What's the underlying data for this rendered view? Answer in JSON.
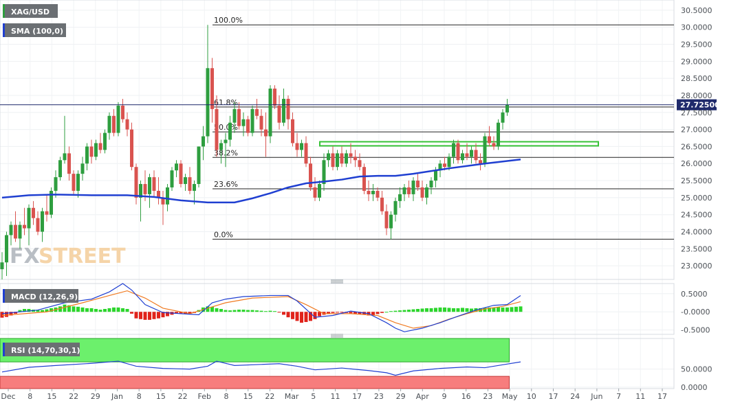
{
  "chart_data": {
    "type": "candlestick",
    "symbol": "XAG/USD",
    "indicators": {
      "sma_label": "SMA (100,0)",
      "macd_label": "MACD (12,26,9)",
      "rsi_label": "RSI (14,70,30,1)"
    },
    "price_axis": {
      "ticks": [
        "30.5000",
        "30.0000",
        "29.5000",
        "29.0000",
        "28.5000",
        "28.0000",
        "27.5000",
        "27.0000",
        "26.5000",
        "26.0000",
        "25.5000",
        "25.0000",
        "24.5000",
        "24.0000",
        "23.5000",
        "23.0000"
      ],
      "ylim": [
        22.6,
        30.8
      ],
      "last_price_label": "27.72500",
      "last_price": 27.725
    },
    "macd_axis": {
      "ticks": [
        "0.5000",
        "-0.0000",
        "-0.5000"
      ],
      "ylim": [
        -0.62,
        0.78
      ]
    },
    "rsi_axis": {
      "ticks": [
        "50.0000",
        "0.0000"
      ],
      "ylim": [
        -4,
        135
      ],
      "overbought": 70,
      "oversold": 30
    },
    "x_axis": {
      "labels": [
        "Dec",
        "8",
        "15",
        "22",
        "29",
        "Jan",
        "8",
        "15",
        "22",
        "Feb",
        "8",
        "15",
        "22",
        "Mar",
        "5",
        "11",
        "17",
        "23",
        "29",
        "Apr",
        "9",
        "16",
        "23",
        "May",
        "10",
        "17",
        "24",
        "Jun",
        "7",
        "11",
        "17"
      ]
    },
    "fibonacci": {
      "levels": [
        {
          "label": "100.0%",
          "value": 30.07
        },
        {
          "label": "61.8%",
          "value": 27.66
        },
        {
          "label": "50.0%",
          "value": 26.93
        },
        {
          "label": "38.2%",
          "value": 26.18
        },
        {
          "label": "23.6%",
          "value": 25.26
        },
        {
          "label": "0.0%",
          "value": 23.78
        }
      ]
    },
    "resistance_zone": {
      "low": 26.52,
      "high": 26.64
    },
    "candles": [
      {
        "o": 22.9,
        "h": 23.4,
        "l": 22.6,
        "c": 23.1
      },
      {
        "o": 23.1,
        "h": 24.0,
        "l": 22.7,
        "c": 23.9
      },
      {
        "o": 23.9,
        "h": 24.3,
        "l": 23.6,
        "c": 24.2
      },
      {
        "o": 24.2,
        "h": 24.6,
        "l": 23.7,
        "c": 23.8
      },
      {
        "o": 23.8,
        "h": 24.3,
        "l": 23.5,
        "c": 24.2
      },
      {
        "o": 24.2,
        "h": 24.7,
        "l": 23.9,
        "c": 24.1
      },
      {
        "o": 24.1,
        "h": 24.8,
        "l": 23.6,
        "c": 24.7
      },
      {
        "o": 24.7,
        "h": 24.9,
        "l": 24.2,
        "c": 24.4
      },
      {
        "o": 24.4,
        "h": 24.6,
        "l": 23.9,
        "c": 24.0
      },
      {
        "o": 24.0,
        "h": 24.7,
        "l": 23.7,
        "c": 24.6
      },
      {
        "o": 24.6,
        "h": 25.1,
        "l": 24.3,
        "c": 24.5
      },
      {
        "o": 24.5,
        "h": 25.3,
        "l": 24.4,
        "c": 25.2
      },
      {
        "o": 25.2,
        "h": 25.8,
        "l": 25.0,
        "c": 25.6
      },
      {
        "o": 25.6,
        "h": 26.2,
        "l": 25.5,
        "c": 26.1
      },
      {
        "o": 26.1,
        "h": 27.4,
        "l": 26.0,
        "c": 26.3
      },
      {
        "o": 26.3,
        "h": 26.5,
        "l": 25.5,
        "c": 25.7
      },
      {
        "o": 25.7,
        "h": 25.8,
        "l": 25.1,
        "c": 25.2
      },
      {
        "o": 25.2,
        "h": 25.8,
        "l": 25.0,
        "c": 25.7
      },
      {
        "o": 25.7,
        "h": 26.2,
        "l": 25.5,
        "c": 26.0
      },
      {
        "o": 26.0,
        "h": 26.6,
        "l": 25.8,
        "c": 26.5
      },
      {
        "o": 26.5,
        "h": 26.7,
        "l": 26.0,
        "c": 26.2
      },
      {
        "o": 26.2,
        "h": 26.7,
        "l": 26.1,
        "c": 26.6
      },
      {
        "o": 26.6,
        "h": 26.9,
        "l": 26.3,
        "c": 26.4
      },
      {
        "o": 26.4,
        "h": 27.0,
        "l": 26.3,
        "c": 26.9
      },
      {
        "o": 26.9,
        "h": 27.5,
        "l": 26.7,
        "c": 27.4
      },
      {
        "o": 27.4,
        "h": 27.6,
        "l": 26.8,
        "c": 26.9
      },
      {
        "o": 26.9,
        "h": 27.8,
        "l": 26.8,
        "c": 27.7
      },
      {
        "o": 27.7,
        "h": 27.9,
        "l": 27.2,
        "c": 27.3
      },
      {
        "o": 27.3,
        "h": 27.5,
        "l": 26.8,
        "c": 27.0
      },
      {
        "o": 27.0,
        "h": 27.2,
        "l": 25.8,
        "c": 25.9
      },
      {
        "o": 25.9,
        "h": 26.0,
        "l": 24.8,
        "c": 25.0
      },
      {
        "o": 25.0,
        "h": 25.5,
        "l": 24.3,
        "c": 25.4
      },
      {
        "o": 25.4,
        "h": 25.8,
        "l": 24.9,
        "c": 25.1
      },
      {
        "o": 25.1,
        "h": 25.7,
        "l": 24.7,
        "c": 25.6
      },
      {
        "o": 25.6,
        "h": 25.8,
        "l": 25.0,
        "c": 25.2
      },
      {
        "o": 25.2,
        "h": 25.6,
        "l": 24.8,
        "c": 25.0
      },
      {
        "o": 25.0,
        "h": 25.2,
        "l": 24.2,
        "c": 24.8
      },
      {
        "o": 24.8,
        "h": 25.4,
        "l": 24.6,
        "c": 25.3
      },
      {
        "o": 25.3,
        "h": 25.9,
        "l": 25.2,
        "c": 25.8
      },
      {
        "o": 25.8,
        "h": 26.1,
        "l": 25.6,
        "c": 26.0
      },
      {
        "o": 26.0,
        "h": 26.1,
        "l": 25.3,
        "c": 25.4
      },
      {
        "o": 25.4,
        "h": 25.7,
        "l": 25.2,
        "c": 25.6
      },
      {
        "o": 25.6,
        "h": 25.9,
        "l": 25.1,
        "c": 25.2
      },
      {
        "o": 25.2,
        "h": 25.5,
        "l": 24.8,
        "c": 25.4
      },
      {
        "o": 25.4,
        "h": 26.5,
        "l": 25.3,
        "c": 26.5
      },
      {
        "o": 26.5,
        "h": 27.1,
        "l": 26.1,
        "c": 26.8
      },
      {
        "o": 26.8,
        "h": 30.07,
        "l": 26.6,
        "c": 28.8
      },
      {
        "o": 28.8,
        "h": 29.1,
        "l": 27.2,
        "c": 27.6
      },
      {
        "o": 27.6,
        "h": 28.0,
        "l": 26.2,
        "c": 26.4
      },
      {
        "o": 26.4,
        "h": 26.7,
        "l": 26.0,
        "c": 26.6
      },
      {
        "o": 26.6,
        "h": 26.9,
        "l": 25.9,
        "c": 26.7
      },
      {
        "o": 26.7,
        "h": 27.4,
        "l": 26.5,
        "c": 27.2
      },
      {
        "o": 27.2,
        "h": 27.8,
        "l": 26.9,
        "c": 27.6
      },
      {
        "o": 27.6,
        "h": 27.8,
        "l": 27.0,
        "c": 27.1
      },
      {
        "o": 27.1,
        "h": 27.5,
        "l": 26.8,
        "c": 27.3
      },
      {
        "o": 27.3,
        "h": 27.4,
        "l": 26.8,
        "c": 26.9
      },
      {
        "o": 26.9,
        "h": 27.7,
        "l": 26.8,
        "c": 27.6
      },
      {
        "o": 27.6,
        "h": 27.9,
        "l": 27.3,
        "c": 27.4
      },
      {
        "o": 27.4,
        "h": 27.6,
        "l": 26.8,
        "c": 27.0
      },
      {
        "o": 27.0,
        "h": 27.5,
        "l": 26.2,
        "c": 26.8
      },
      {
        "o": 26.8,
        "h": 28.3,
        "l": 26.6,
        "c": 28.2
      },
      {
        "o": 28.2,
        "h": 28.3,
        "l": 27.6,
        "c": 27.7
      },
      {
        "o": 27.7,
        "h": 28.0,
        "l": 27.0,
        "c": 27.2
      },
      {
        "o": 27.2,
        "h": 28.2,
        "l": 27.1,
        "c": 27.9
      },
      {
        "o": 27.9,
        "h": 28.0,
        "l": 27.0,
        "c": 27.3
      },
      {
        "o": 27.3,
        "h": 27.5,
        "l": 26.5,
        "c": 26.6
      },
      {
        "o": 26.6,
        "h": 26.9,
        "l": 26.2,
        "c": 26.4
      },
      {
        "o": 26.4,
        "h": 26.7,
        "l": 26.2,
        "c": 26.6
      },
      {
        "o": 26.6,
        "h": 26.8,
        "l": 25.9,
        "c": 26.0
      },
      {
        "o": 26.0,
        "h": 26.2,
        "l": 25.2,
        "c": 25.3
      },
      {
        "o": 25.3,
        "h": 25.6,
        "l": 24.9,
        "c": 25.0
      },
      {
        "o": 25.0,
        "h": 25.5,
        "l": 24.9,
        "c": 25.4
      },
      {
        "o": 25.4,
        "h": 26.3,
        "l": 25.2,
        "c": 26.1
      },
      {
        "o": 26.1,
        "h": 26.4,
        "l": 25.9,
        "c": 26.3
      },
      {
        "o": 26.3,
        "h": 26.5,
        "l": 25.8,
        "c": 25.9
      },
      {
        "o": 25.9,
        "h": 26.4,
        "l": 25.8,
        "c": 26.3
      },
      {
        "o": 26.3,
        "h": 26.5,
        "l": 25.9,
        "c": 26.0
      },
      {
        "o": 26.0,
        "h": 26.4,
        "l": 25.9,
        "c": 26.3
      },
      {
        "o": 26.3,
        "h": 26.6,
        "l": 26.0,
        "c": 26.2
      },
      {
        "o": 26.2,
        "h": 26.4,
        "l": 25.9,
        "c": 26.1
      },
      {
        "o": 26.1,
        "h": 26.3,
        "l": 25.8,
        "c": 25.9
      },
      {
        "o": 25.9,
        "h": 26.0,
        "l": 25.1,
        "c": 25.2
      },
      {
        "o": 25.2,
        "h": 25.5,
        "l": 24.9,
        "c": 25.1
      },
      {
        "o": 25.1,
        "h": 25.4,
        "l": 24.9,
        "c": 25.2
      },
      {
        "o": 25.2,
        "h": 25.3,
        "l": 24.9,
        "c": 25.0
      },
      {
        "o": 25.0,
        "h": 25.2,
        "l": 24.5,
        "c": 24.6
      },
      {
        "o": 24.6,
        "h": 24.8,
        "l": 23.9,
        "c": 24.1
      },
      {
        "o": 24.1,
        "h": 24.6,
        "l": 23.78,
        "c": 24.5
      },
      {
        "o": 24.5,
        "h": 25.0,
        "l": 24.3,
        "c": 24.9
      },
      {
        "o": 24.9,
        "h": 25.3,
        "l": 24.7,
        "c": 25.1
      },
      {
        "o": 25.1,
        "h": 25.4,
        "l": 24.9,
        "c": 25.3
      },
      {
        "o": 25.3,
        "h": 25.5,
        "l": 25.0,
        "c": 25.1
      },
      {
        "o": 25.1,
        "h": 25.6,
        "l": 24.9,
        "c": 25.5
      },
      {
        "o": 25.5,
        "h": 25.7,
        "l": 25.2,
        "c": 25.3
      },
      {
        "o": 25.3,
        "h": 25.5,
        "l": 24.9,
        "c": 25.0
      },
      {
        "o": 25.0,
        "h": 25.4,
        "l": 24.8,
        "c": 25.3
      },
      {
        "o": 25.3,
        "h": 25.6,
        "l": 25.1,
        "c": 25.5
      },
      {
        "o": 25.5,
        "h": 25.9,
        "l": 25.3,
        "c": 25.8
      },
      {
        "o": 25.8,
        "h": 26.1,
        "l": 25.6,
        "c": 26.0
      },
      {
        "o": 26.0,
        "h": 26.2,
        "l": 25.8,
        "c": 25.9
      },
      {
        "o": 25.9,
        "h": 26.3,
        "l": 25.8,
        "c": 26.2
      },
      {
        "o": 26.2,
        "h": 26.7,
        "l": 26.0,
        "c": 26.6
      },
      {
        "o": 26.6,
        "h": 26.7,
        "l": 26.0,
        "c": 26.1
      },
      {
        "o": 26.1,
        "h": 26.4,
        "l": 26.0,
        "c": 26.3
      },
      {
        "o": 26.3,
        "h": 26.6,
        "l": 26.1,
        "c": 26.2
      },
      {
        "o": 26.2,
        "h": 26.5,
        "l": 26.0,
        "c": 26.4
      },
      {
        "o": 26.4,
        "h": 26.6,
        "l": 26.0,
        "c": 26.1
      },
      {
        "o": 26.1,
        "h": 26.3,
        "l": 25.8,
        "c": 26.0
      },
      {
        "o": 26.0,
        "h": 26.9,
        "l": 25.9,
        "c": 26.8
      },
      {
        "o": 26.8,
        "h": 27.1,
        "l": 26.5,
        "c": 26.6
      },
      {
        "o": 26.6,
        "h": 26.8,
        "l": 26.4,
        "c": 26.5
      },
      {
        "o": 26.5,
        "h": 27.3,
        "l": 26.4,
        "c": 27.2
      },
      {
        "o": 27.2,
        "h": 27.6,
        "l": 27.0,
        "c": 27.5
      },
      {
        "o": 27.5,
        "h": 27.9,
        "l": 27.4,
        "c": 27.72
      }
    ],
    "sma100": [
      {
        "i": 0,
        "v": 25.0
      },
      {
        "i": 6,
        "v": 25.07
      },
      {
        "i": 12,
        "v": 25.09
      },
      {
        "i": 20,
        "v": 25.07
      },
      {
        "i": 28,
        "v": 25.07
      },
      {
        "i": 34,
        "v": 25.02
      },
      {
        "i": 40,
        "v": 24.92
      },
      {
        "i": 46,
        "v": 24.86
      },
      {
        "i": 52,
        "v": 24.86
      },
      {
        "i": 56,
        "v": 24.98
      },
      {
        "i": 60,
        "v": 25.13
      },
      {
        "i": 64,
        "v": 25.3
      },
      {
        "i": 68,
        "v": 25.42
      },
      {
        "i": 72,
        "v": 25.47
      },
      {
        "i": 76,
        "v": 25.53
      },
      {
        "i": 80,
        "v": 25.62
      },
      {
        "i": 84,
        "v": 25.64
      },
      {
        "i": 88,
        "v": 25.64
      },
      {
        "i": 92,
        "v": 25.7
      },
      {
        "i": 96,
        "v": 25.78
      },
      {
        "i": 100,
        "v": 25.86
      },
      {
        "i": 104,
        "v": 25.93
      },
      {
        "i": 108,
        "v": 26.0
      },
      {
        "i": 112,
        "v": 26.06
      },
      {
        "i": 116,
        "v": 26.12
      }
    ],
    "macd": [
      {
        "i": 0,
        "v": -0.05
      },
      {
        "i": 8,
        "v": 0.05
      },
      {
        "i": 14,
        "v": 0.25
      },
      {
        "i": 20,
        "v": 0.35
      },
      {
        "i": 24,
        "v": 0.55
      },
      {
        "i": 27,
        "v": 0.78
      },
      {
        "i": 29,
        "v": 0.6
      },
      {
        "i": 32,
        "v": 0.2
      },
      {
        "i": 36,
        "v": -0.02
      },
      {
        "i": 40,
        "v": -0.05
      },
      {
        "i": 44,
        "v": -0.08
      },
      {
        "i": 47,
        "v": 0.25
      },
      {
        "i": 50,
        "v": 0.35
      },
      {
        "i": 54,
        "v": 0.42
      },
      {
        "i": 60,
        "v": 0.45
      },
      {
        "i": 64,
        "v": 0.45
      },
      {
        "i": 66,
        "v": 0.3
      },
      {
        "i": 70,
        "v": -0.15
      },
      {
        "i": 74,
        "v": -0.1
      },
      {
        "i": 78,
        "v": 0.02
      },
      {
        "i": 82,
        "v": -0.05
      },
      {
        "i": 86,
        "v": -0.3
      },
      {
        "i": 88,
        "v": -0.45
      },
      {
        "i": 90,
        "v": -0.55
      },
      {
        "i": 94,
        "v": -0.45
      },
      {
        "i": 98,
        "v": -0.3
      },
      {
        "i": 102,
        "v": -0.12
      },
      {
        "i": 106,
        "v": 0.05
      },
      {
        "i": 110,
        "v": 0.18
      },
      {
        "i": 113,
        "v": 0.2
      },
      {
        "i": 116,
        "v": 0.45
      }
    ],
    "macd_signal": [
      {
        "i": 0,
        "v": -0.1
      },
      {
        "i": 10,
        "v": 0.0
      },
      {
        "i": 18,
        "v": 0.25
      },
      {
        "i": 24,
        "v": 0.45
      },
      {
        "i": 28,
        "v": 0.58
      },
      {
        "i": 32,
        "v": 0.38
      },
      {
        "i": 36,
        "v": 0.1
      },
      {
        "i": 42,
        "v": -0.05
      },
      {
        "i": 46,
        "v": 0.1
      },
      {
        "i": 50,
        "v": 0.25
      },
      {
        "i": 56,
        "v": 0.38
      },
      {
        "i": 64,
        "v": 0.42
      },
      {
        "i": 68,
        "v": 0.2
      },
      {
        "i": 72,
        "v": -0.05
      },
      {
        "i": 78,
        "v": -0.05
      },
      {
        "i": 84,
        "v": -0.1
      },
      {
        "i": 88,
        "v": -0.3
      },
      {
        "i": 92,
        "v": -0.45
      },
      {
        "i": 96,
        "v": -0.38
      },
      {
        "i": 100,
        "v": -0.2
      },
      {
        "i": 104,
        "v": -0.05
      },
      {
        "i": 108,
        "v": 0.08
      },
      {
        "i": 112,
        "v": 0.15
      },
      {
        "i": 116,
        "v": 0.28
      }
    ],
    "macd_hist": [
      -0.16,
      -0.14,
      -0.1,
      -0.05,
      0.05,
      0.08,
      0.08,
      0.06,
      0.05,
      0.05,
      0.07,
      0.1,
      0.12,
      0.15,
      0.2,
      0.18,
      0.15,
      0.14,
      0.12,
      0.1,
      0.1,
      0.08,
      0.06,
      0.08,
      0.1,
      0.12,
      0.12,
      0.1,
      0.08,
      -0.05,
      -0.18,
      -0.2,
      -0.22,
      -0.22,
      -0.2,
      -0.18,
      -0.15,
      -0.12,
      -0.08,
      -0.05,
      -0.04,
      -0.06,
      -0.05,
      -0.03,
      0.05,
      0.12,
      0.15,
      0.14,
      0.1,
      0.08,
      0.05,
      0.04,
      0.05,
      0.06,
      0.06,
      0.05,
      0.05,
      0.04,
      0.03,
      0.02,
      0.03,
      0.02,
      -0.02,
      -0.08,
      -0.15,
      -0.2,
      -0.25,
      -0.3,
      -0.28,
      -0.25,
      -0.2,
      -0.12,
      -0.08,
      -0.05,
      -0.03,
      -0.02,
      -0.02,
      -0.03,
      -0.04,
      -0.05,
      -0.06,
      -0.08,
      -0.1,
      -0.09,
      -0.06,
      -0.03,
      0.0,
      0.02,
      0.03,
      0.04,
      0.05,
      0.06,
      0.07,
      0.08,
      0.09,
      0.1,
      0.1,
      0.11,
      0.12,
      0.12,
      0.11,
      0.1,
      0.1,
      0.11,
      0.1,
      0.09,
      0.1,
      0.1,
      0.11,
      0.12,
      0.12,
      0.13,
      0.12,
      0.12,
      0.13,
      0.14,
      0.15
    ],
    "rsi": [
      {
        "i": 0,
        "v": 42
      },
      {
        "i": 6,
        "v": 55
      },
      {
        "i": 12,
        "v": 60
      },
      {
        "i": 20,
        "v": 66
      },
      {
        "i": 26,
        "v": 72
      },
      {
        "i": 30,
        "v": 58
      },
      {
        "i": 36,
        "v": 52
      },
      {
        "i": 42,
        "v": 50
      },
      {
        "i": 46,
        "v": 58
      },
      {
        "i": 48,
        "v": 72
      },
      {
        "i": 52,
        "v": 60
      },
      {
        "i": 58,
        "v": 63
      },
      {
        "i": 62,
        "v": 65
      },
      {
        "i": 66,
        "v": 58
      },
      {
        "i": 70,
        "v": 48
      },
      {
        "i": 76,
        "v": 53
      },
      {
        "i": 82,
        "v": 46
      },
      {
        "i": 86,
        "v": 40
      },
      {
        "i": 88,
        "v": 33
      },
      {
        "i": 92,
        "v": 45
      },
      {
        "i": 98,
        "v": 52
      },
      {
        "i": 104,
        "v": 56
      },
      {
        "i": 108,
        "v": 54
      },
      {
        "i": 112,
        "v": 62
      },
      {
        "i": 116,
        "v": 70
      }
    ]
  }
}
